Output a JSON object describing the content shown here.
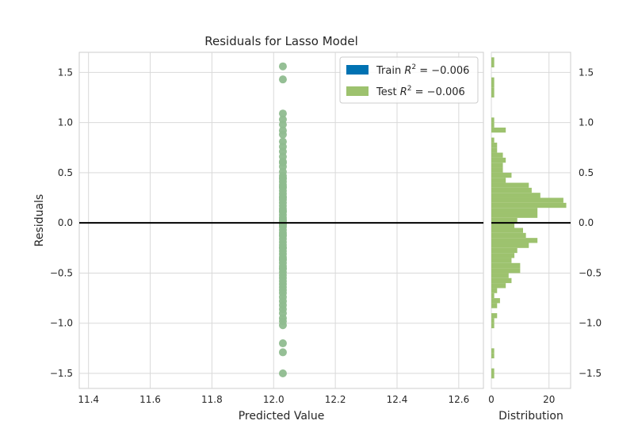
{
  "chart_data": {
    "type": "scatter",
    "title": "Residuals for Lasso Model",
    "xlabel": "Predicted Value",
    "ylabel": "Residuals",
    "xlim": [
      11.37,
      12.68
    ],
    "ylim": [
      -1.65,
      1.7
    ],
    "x_ticks": [
      "11.4",
      "11.6",
      "11.8",
      "12.0",
      "12.2",
      "12.4",
      "12.6"
    ],
    "x_tick_values": [
      11.4,
      11.6,
      11.8,
      12.0,
      12.2,
      12.4,
      12.6
    ],
    "y_ticks": [
      "1.5",
      "1.0",
      "0.5",
      "0.0",
      "−0.5",
      "−1.0",
      "−1.5"
    ],
    "y_tick_values": [
      1.5,
      1.0,
      0.5,
      0.0,
      -0.5,
      -1.0,
      -1.5
    ],
    "grid": true,
    "legend_position": "top-right",
    "zero_line": 0.0,
    "series": [
      {
        "name": "Train R² = −0.006",
        "legend_label": "Train $R^2 = -0.006$",
        "color": "#0072b2",
        "x": [],
        "y": []
      },
      {
        "name": "Test R² = −0.006",
        "legend_label": "Test $R^2 = -0.006$",
        "color": "#8fbc8f",
        "x": [
          12.03,
          12.03,
          12.03,
          12.03,
          12.03,
          12.03,
          12.03,
          12.03,
          12.03,
          12.03,
          12.03,
          12.03,
          12.03,
          12.03,
          12.03,
          12.03,
          12.03,
          12.03,
          12.03,
          12.03,
          12.03,
          12.03,
          12.03,
          12.03,
          12.03,
          12.03,
          12.03,
          12.03,
          12.03,
          12.03,
          12.03,
          12.03,
          12.03,
          12.03,
          12.03,
          12.03,
          12.03,
          12.03,
          12.03,
          12.03,
          12.03,
          12.03,
          12.03,
          12.03,
          12.03,
          12.03,
          12.03,
          12.03,
          12.03,
          12.03,
          12.03,
          12.03,
          12.03,
          12.03,
          12.03,
          12.03,
          12.03,
          12.03,
          12.03,
          12.03,
          12.03,
          12.03,
          12.03,
          12.03,
          12.03,
          12.03,
          12.03,
          12.03,
          12.03,
          12.03,
          12.03,
          12.03,
          12.03,
          12.03,
          12.03,
          12.03,
          12.03
        ],
        "y": [
          1.56,
          1.43,
          1.09,
          1.03,
          0.98,
          0.92,
          0.88,
          0.81,
          0.76,
          0.71,
          0.66,
          0.61,
          0.56,
          0.51,
          0.47,
          0.44,
          0.41,
          0.38,
          0.35,
          0.32,
          0.29,
          0.26,
          0.23,
          0.2,
          0.17,
          0.14,
          0.11,
          0.08,
          0.05,
          0.02,
          -0.01,
          -0.04,
          -0.07,
          -0.1,
          -0.13,
          -0.16,
          -0.19,
          -0.22,
          -0.25,
          -0.28,
          -0.31,
          -0.34,
          -0.37,
          -0.4,
          -0.43,
          -0.46,
          -0.49,
          -0.52,
          -0.55,
          -0.58,
          -0.61,
          -0.64,
          -0.67,
          -0.7,
          -0.74,
          -0.78,
          -0.82,
          -0.86,
          -0.9,
          -0.95,
          -0.98,
          -1.02,
          -1.2,
          -1.29,
          -1.5,
          0.0,
          0.03,
          -0.02,
          0.12,
          -0.12,
          0.25,
          -0.25,
          0.36,
          -0.36,
          0.45,
          -0.45,
          0.6
        ]
      }
    ],
    "distribution": {
      "xlabel": "Distribution",
      "xlim": [
        0,
        27.5
      ],
      "x_ticks": [
        "0",
        "20"
      ],
      "x_tick_values": [
        0,
        20
      ],
      "bin_edges": [
        -1.55,
        -1.45,
        -1.35,
        -1.3,
        -1.25,
        -1.15,
        -1.05,
        -1.0,
        -0.95,
        -0.9,
        -0.85,
        -0.8,
        -0.75,
        -0.7,
        -0.65,
        -0.6,
        -0.55,
        -0.5,
        -0.45,
        -0.4,
        -0.35,
        -0.3,
        -0.25,
        -0.2,
        -0.15,
        -0.1,
        -0.05,
        0.0,
        0.05,
        0.1,
        0.15,
        0.2,
        0.25,
        0.3,
        0.35,
        0.4,
        0.45,
        0.5,
        0.55,
        0.6,
        0.65,
        0.7,
        0.75,
        0.8,
        0.85,
        0.9,
        0.95,
        1.0,
        1.05,
        1.1,
        1.15,
        1.25,
        1.35,
        1.45,
        1.55,
        1.65
      ],
      "counts": [
        1,
        0,
        1,
        1,
        0,
        0,
        1,
        1,
        2,
        0,
        2,
        3,
        1,
        2,
        5,
        7,
        6,
        10,
        10,
        7,
        8,
        9,
        13,
        16,
        12,
        11,
        8,
        9,
        16,
        16,
        26,
        25,
        17,
        14,
        13,
        5,
        7,
        4,
        4,
        5,
        4,
        2,
        2,
        1,
        0,
        5,
        1,
        1,
        0,
        0,
        0,
        1,
        1,
        0,
        1
      ]
    }
  }
}
